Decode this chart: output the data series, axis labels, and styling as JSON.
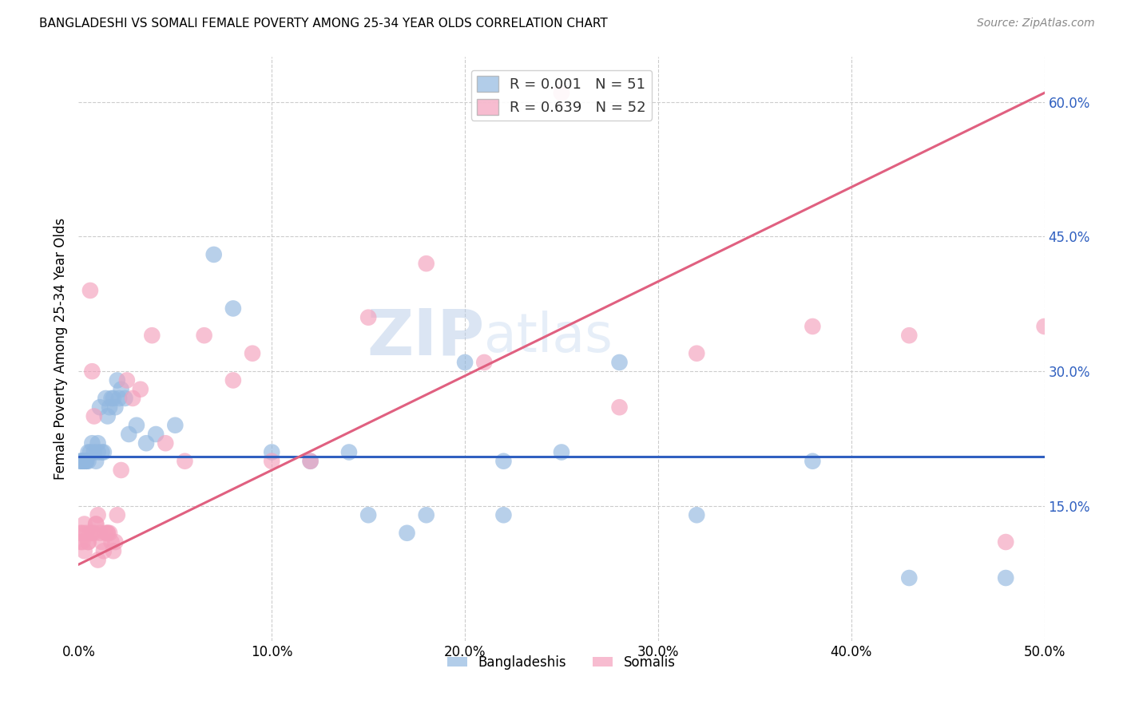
{
  "title": "BANGLADESHI VS SOMALI FEMALE POVERTY AMONG 25-34 YEAR OLDS CORRELATION CHART",
  "source": "Source: ZipAtlas.com",
  "ylabel": "Female Poverty Among 25-34 Year Olds",
  "xlim": [
    0.0,
    0.5
  ],
  "ylim": [
    0.0,
    0.65
  ],
  "xticks": [
    0.0,
    0.1,
    0.2,
    0.3,
    0.4,
    0.5
  ],
  "yticks": [
    0.15,
    0.3,
    0.45,
    0.6
  ],
  "ytick_labels": [
    "15.0%",
    "30.0%",
    "45.0%",
    "60.0%"
  ],
  "xtick_labels": [
    "0.0%",
    "10.0%",
    "20.0%",
    "30.0%",
    "40.0%",
    "50.0%"
  ],
  "legend_labels_bottom": [
    "Bangladeshis",
    "Somalis"
  ],
  "bangladeshi_color": "#92b8e0",
  "somali_color": "#f4a0bc",
  "bangladeshi_line_color": "#3060c0",
  "somali_line_color": "#e06080",
  "watermark_zip": "ZIP",
  "watermark_atlas": "atlas",
  "background_color": "#ffffff",
  "grid_color": "#cccccc",
  "bangladeshi_x": [
    0.001,
    0.001,
    0.002,
    0.002,
    0.003,
    0.003,
    0.004,
    0.004,
    0.005,
    0.005,
    0.006,
    0.007,
    0.008,
    0.009,
    0.01,
    0.01,
    0.011,
    0.012,
    0.013,
    0.014,
    0.015,
    0.016,
    0.017,
    0.018,
    0.019,
    0.02,
    0.021,
    0.022,
    0.024,
    0.026,
    0.03,
    0.035,
    0.04,
    0.05,
    0.07,
    0.08,
    0.1,
    0.12,
    0.14,
    0.17,
    0.2,
    0.22,
    0.25,
    0.28,
    0.32,
    0.38,
    0.43,
    0.48,
    0.18,
    0.15,
    0.22
  ],
  "bangladeshi_y": [
    0.2,
    0.2,
    0.2,
    0.2,
    0.2,
    0.2,
    0.2,
    0.2,
    0.2,
    0.21,
    0.21,
    0.22,
    0.21,
    0.2,
    0.22,
    0.21,
    0.26,
    0.21,
    0.21,
    0.27,
    0.25,
    0.26,
    0.27,
    0.27,
    0.26,
    0.29,
    0.27,
    0.28,
    0.27,
    0.23,
    0.24,
    0.22,
    0.23,
    0.24,
    0.43,
    0.37,
    0.21,
    0.2,
    0.21,
    0.12,
    0.31,
    0.2,
    0.21,
    0.31,
    0.14,
    0.2,
    0.07,
    0.07,
    0.14,
    0.14,
    0.14
  ],
  "somali_x": [
    0.001,
    0.001,
    0.002,
    0.002,
    0.003,
    0.003,
    0.004,
    0.005,
    0.005,
    0.006,
    0.007,
    0.008,
    0.009,
    0.01,
    0.011,
    0.012,
    0.013,
    0.014,
    0.015,
    0.016,
    0.017,
    0.018,
    0.019,
    0.02,
    0.022,
    0.025,
    0.028,
    0.032,
    0.038,
    0.045,
    0.055,
    0.065,
    0.08,
    0.09,
    0.1,
    0.12,
    0.15,
    0.18,
    0.21,
    0.25,
    0.28,
    0.32,
    0.38,
    0.43,
    0.48,
    0.5,
    0.006,
    0.007,
    0.008,
    0.009,
    0.01,
    0.015
  ],
  "somali_y": [
    0.11,
    0.12,
    0.11,
    0.12,
    0.13,
    0.1,
    0.12,
    0.11,
    0.11,
    0.12,
    0.12,
    0.12,
    0.13,
    0.14,
    0.12,
    0.11,
    0.1,
    0.12,
    0.12,
    0.12,
    0.11,
    0.1,
    0.11,
    0.14,
    0.19,
    0.29,
    0.27,
    0.28,
    0.34,
    0.22,
    0.2,
    0.34,
    0.29,
    0.32,
    0.2,
    0.2,
    0.36,
    0.42,
    0.31,
    0.61,
    0.26,
    0.32,
    0.35,
    0.34,
    0.11,
    0.35,
    0.39,
    0.3,
    0.25,
    0.13,
    0.09,
    0.12
  ],
  "bang_line_slope": 0.0,
  "bang_line_intercept": 0.205,
  "somali_line_slope": 1.05,
  "somali_line_intercept": 0.085
}
